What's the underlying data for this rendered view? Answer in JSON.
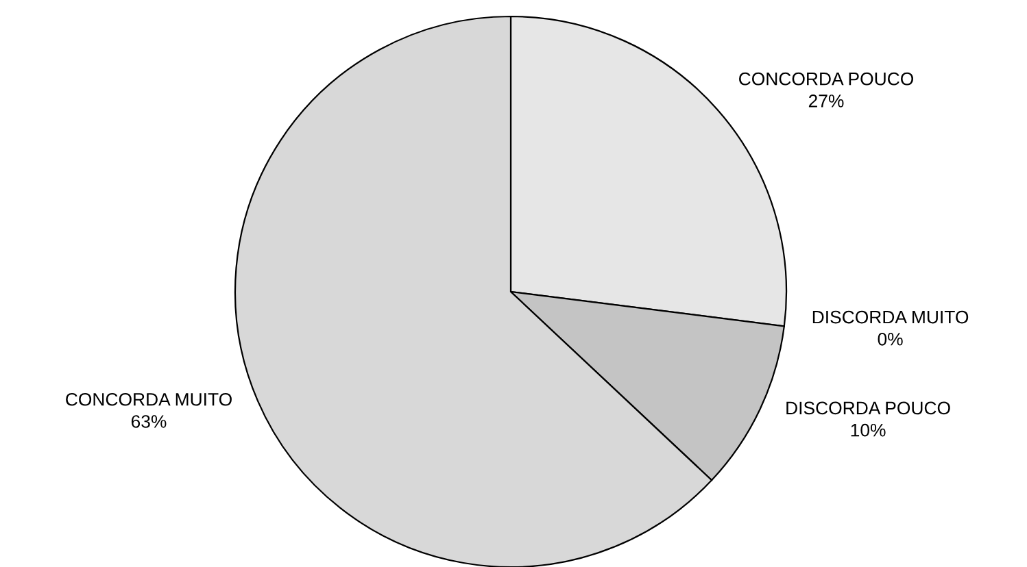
{
  "chart_data": {
    "type": "pie",
    "categories": [
      "CONCORDA POUCO",
      "DISCORDA MUITO",
      "DISCORDA POUCO",
      "CONCORDA MUITO"
    ],
    "values": [
      27,
      0,
      10,
      63
    ],
    "value_labels": [
      "27%",
      "0%",
      "10%",
      "63%"
    ],
    "colors": [
      "#e6e6e6",
      "#d0d0d0",
      "#c4c4c4",
      "#d8d8d8"
    ]
  }
}
